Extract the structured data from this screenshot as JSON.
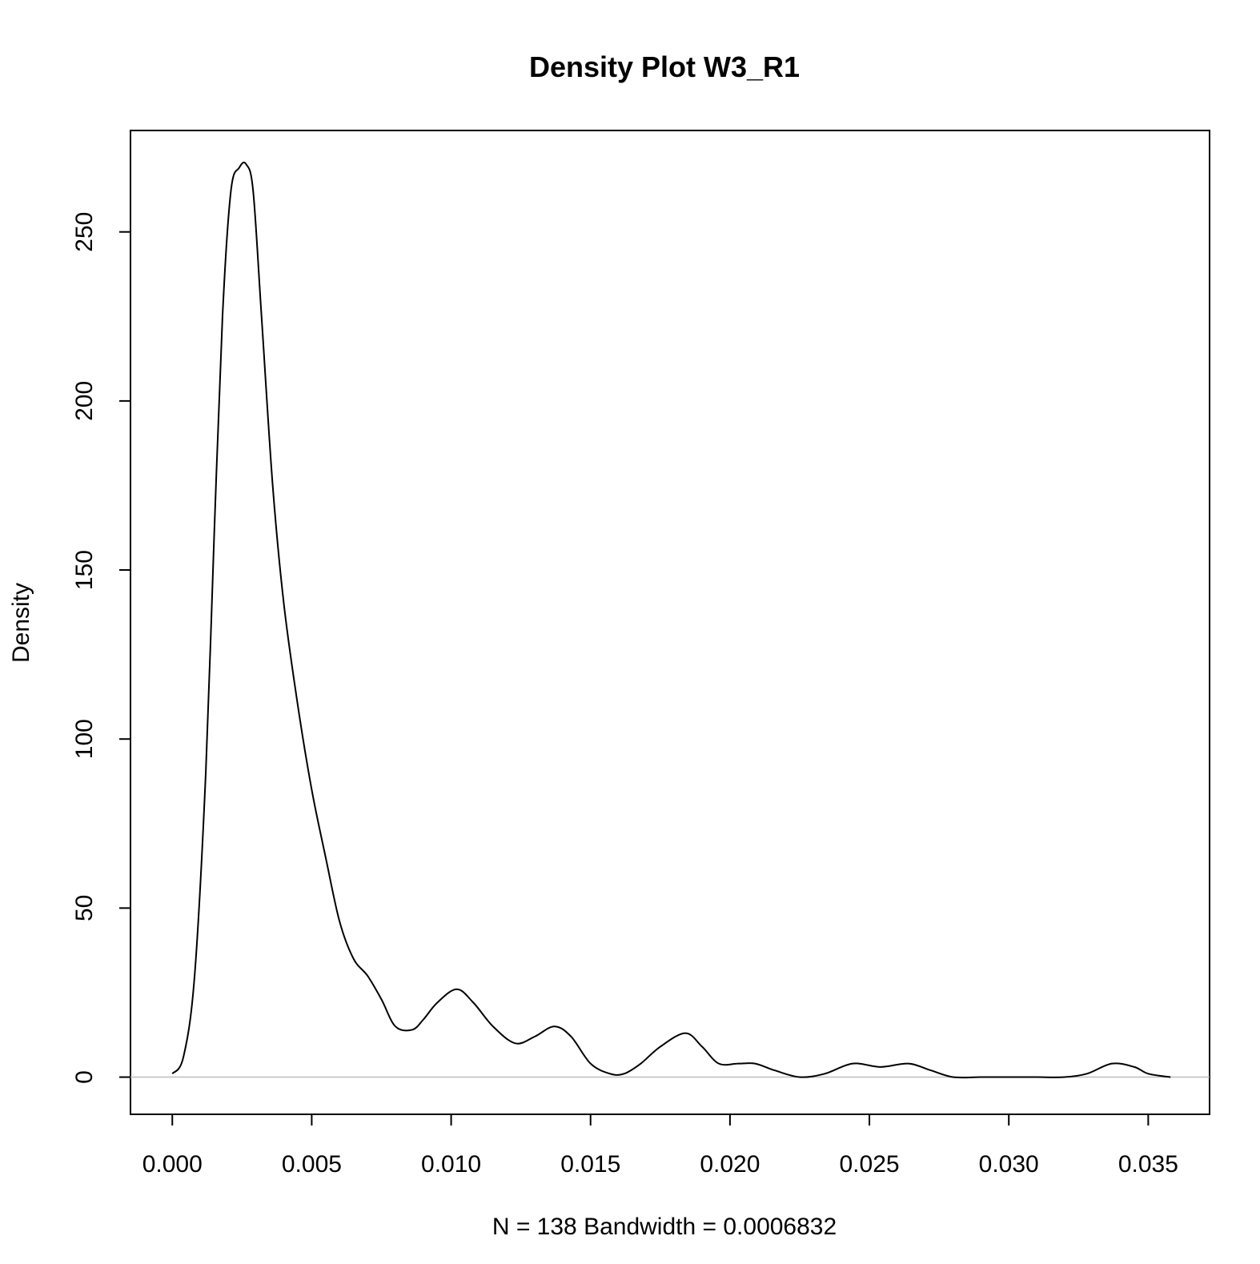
{
  "chart_data": {
    "type": "line",
    "title": "Density Plot W3_R1",
    "xlabel": "N = 138   Bandwidth = 0.0006832",
    "ylabel": "Density",
    "xlim": [
      -0.0015,
      0.0372
    ],
    "ylim": [
      -11,
      280
    ],
    "x_ticks": [
      0.0,
      0.005,
      0.01,
      0.015,
      0.02,
      0.025,
      0.03,
      0.035
    ],
    "x_tick_labels": [
      "0.000",
      "0.005",
      "0.010",
      "0.015",
      "0.020",
      "0.025",
      "0.030",
      "0.035"
    ],
    "y_ticks": [
      0,
      50,
      100,
      150,
      200,
      250
    ],
    "y_tick_labels": [
      "0",
      "50",
      "100",
      "150",
      "200",
      "250"
    ],
    "baseline": 0,
    "grid": false,
    "line_color": "#000000",
    "baseline_color": "#bebebe",
    "series": [
      {
        "x": [
          0.0,
          0.0004,
          0.0008,
          0.0012,
          0.0015,
          0.0018,
          0.0021,
          0.0024,
          0.00265,
          0.0029,
          0.0032,
          0.0036,
          0.004,
          0.0045,
          0.005,
          0.0055,
          0.006,
          0.0065,
          0.007,
          0.0075,
          0.008,
          0.0086,
          0.009,
          0.0095,
          0.0102,
          0.0108,
          0.0115,
          0.0123,
          0.013,
          0.0137,
          0.0143,
          0.015,
          0.0157,
          0.0162,
          0.0168,
          0.0175,
          0.0184,
          0.019,
          0.0196,
          0.0203,
          0.0209,
          0.0216,
          0.0225,
          0.0234,
          0.0244,
          0.0254,
          0.0264,
          0.0272,
          0.028,
          0.029,
          0.03,
          0.031,
          0.032,
          0.0328,
          0.0337,
          0.0345,
          0.035,
          0.0358
        ],
        "y": [
          1,
          6,
          30,
          90,
          160,
          225,
          262,
          269,
          270,
          262,
          225,
          175,
          140,
          110,
          85,
          65,
          46,
          35,
          30,
          23,
          15,
          14,
          17,
          22,
          26,
          22,
          15,
          10,
          12,
          15,
          12,
          4,
          1,
          1,
          4,
          9,
          13,
          9,
          4,
          4,
          4,
          2,
          0,
          1,
          4,
          3,
          4,
          2,
          0,
          0,
          0,
          0,
          0,
          1,
          4,
          3,
          1,
          0
        ]
      }
    ]
  }
}
